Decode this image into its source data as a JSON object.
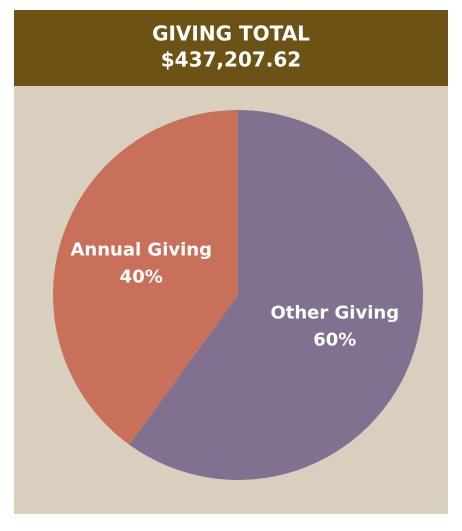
{
  "chart_data": {
    "type": "pie",
    "title": "GIVING TOTAL",
    "subtitle": "$437,207.62",
    "categories": [
      "Annual Giving",
      "Other Giving"
    ],
    "values": [
      40,
      60
    ],
    "value_labels": [
      "40%",
      "60%"
    ],
    "colors": [
      "#c8705a",
      "#807191"
    ]
  }
}
